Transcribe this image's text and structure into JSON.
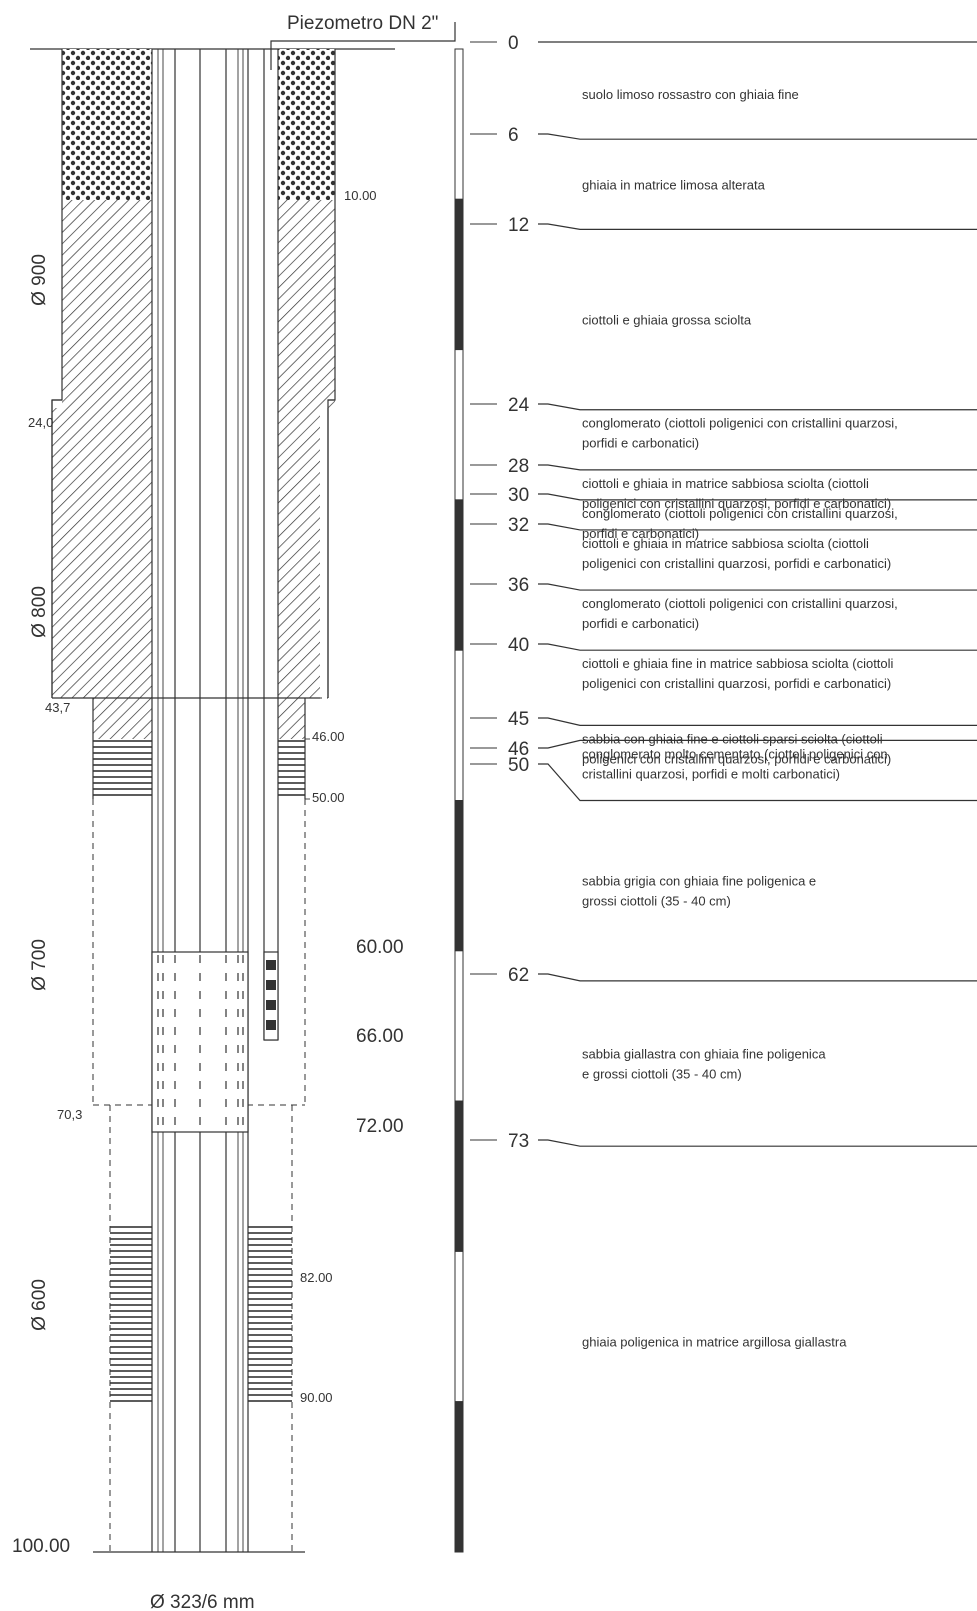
{
  "piezometer_label": "Piezometro DN 2\"",
  "casing_label": "Ø 323/6 mm",
  "bottom_depth_label": "100.00",
  "bore_diameters": [
    {
      "label": "Ø 900"
    },
    {
      "label": "Ø 800"
    },
    {
      "label": "Ø 700"
    },
    {
      "label": "Ø 600"
    }
  ],
  "diameter_change_depths": [
    "24,0",
    "43,7",
    "70,3"
  ],
  "well_depth_marks": [
    "10.00",
    "46.00",
    "50.00",
    "82.00",
    "90.00"
  ],
  "screen_depth_marks": [
    "60.00",
    "66.00",
    "72.00"
  ],
  "layers": [
    {
      "top": "0",
      "top_m": 0,
      "bottom_m": 6,
      "description": [
        "suolo limoso rossastro con ghiaia fine"
      ]
    },
    {
      "top": "6",
      "top_m": 6,
      "bottom_m": 12,
      "description": [
        "ghiaia in matrice limosa alterata"
      ]
    },
    {
      "top": "12",
      "top_m": 12,
      "bottom_m": 24,
      "description": [
        "ciottoli e ghiaia grossa sciolta"
      ]
    },
    {
      "top": "24",
      "top_m": 24,
      "bottom_m": 28,
      "description": [
        "conglomerato (ciottoli poligenici con cristallini quarzosi,",
        "porfidi e carbonatici)"
      ]
    },
    {
      "top": "28",
      "top_m": 28,
      "bottom_m": 30,
      "description": [
        "ciottoli e ghiaia in matrice sabbiosa sciolta (ciottoli",
        "poligenici con cristallini quarzosi, porfidi e carbonatici)"
      ]
    },
    {
      "top": "30",
      "top_m": 30,
      "bottom_m": 32,
      "description": [
        "conglomerato (ciottoli poligenici con cristallini quarzosi,",
        "porfidi e carbonatici)"
      ]
    },
    {
      "top": "32",
      "top_m": 32,
      "bottom_m": 36,
      "description": [
        "ciottoli e ghiaia in matrice sabbiosa sciolta (ciottoli",
        "poligenici con cristallini quarzosi, porfidi e carbonatici)"
      ]
    },
    {
      "top": "36",
      "top_m": 36,
      "bottom_m": 40,
      "description": [
        "conglomerato (ciottoli poligenici con cristallini quarzosi,",
        "porfidi e carbonatici)"
      ]
    },
    {
      "top": "40",
      "top_m": 40,
      "bottom_m": 45,
      "description": [
        "ciottoli e ghiaia fine in matrice sabbiosa sciolta (ciottoli",
        "poligenici con cristallini quarzosi, porfidi e carbonatici)"
      ]
    },
    {
      "top": "45",
      "top_m": 45,
      "bottom_m": 46,
      "description": [
        "sabbia con ghiaia fine e ciottoli sparsi sciolta (ciottoli",
        "poligenici con cristallini quarzosi, porfidi e carbonatici)"
      ]
    },
    {
      "top": "46",
      "top_m": 46,
      "bottom_m": 50,
      "description": [
        "conglomerato molto cementato (ciottoli poligenici con",
        "cristallini quarzosi, porfidi e molti carbonatici)"
      ]
    },
    {
      "top": "50",
      "top_m": 50,
      "bottom_m": 62,
      "description": [
        "sabbia grigia con ghiaia fine poligenica e",
        "grossi ciottoli (35 - 40 cm)"
      ]
    },
    {
      "top": "62",
      "top_m": 62,
      "bottom_m": 73,
      "description": [
        "sabbia giallastra con ghiaia fine poligenica",
        "e grossi ciottoli (35 - 40 cm)"
      ]
    },
    {
      "top": "73",
      "top_m": 73,
      "bottom_m": 100,
      "description": [
        "ghiaia poligenica in matrice argillosa giallastra"
      ]
    }
  ],
  "colors": {
    "ink": "#333333",
    "scale_black": "#333333",
    "paper": "#ffffff"
  }
}
